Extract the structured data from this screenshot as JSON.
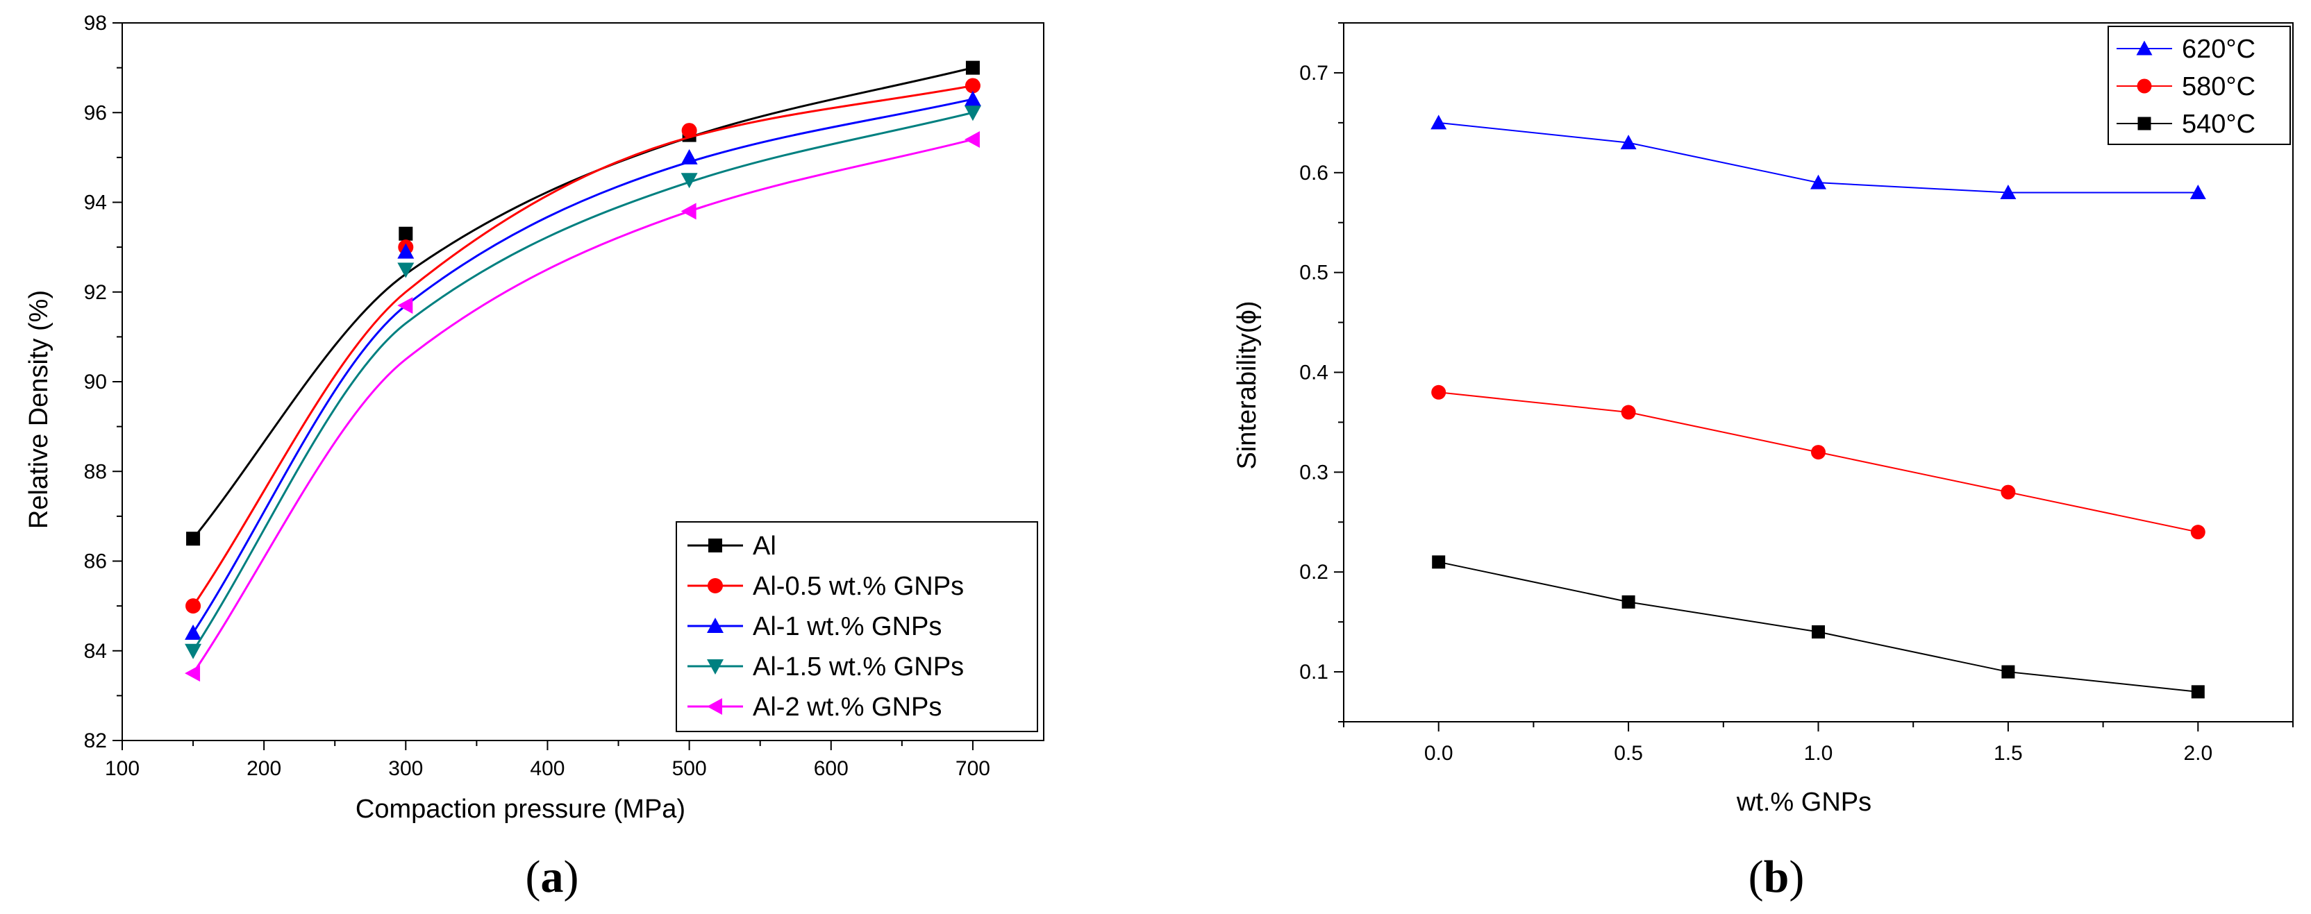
{
  "chart_data": [
    {
      "type": "line",
      "panel": "a",
      "caption_open": "(",
      "caption_letter": "a",
      "caption_close": ")",
      "xlabel": "Compaction pressure (MPa)",
      "ylabel": "Relative Density (%)",
      "xlim": [
        100,
        750
      ],
      "ylim": [
        82,
        98
      ],
      "xticks": [
        100,
        200,
        300,
        400,
        500,
        600,
        700
      ],
      "yticks": [
        82,
        84,
        86,
        88,
        90,
        92,
        94,
        96,
        98
      ],
      "legend_position": "bottom-right",
      "x": [
        150,
        300,
        500,
        700
      ],
      "series": [
        {
          "name": "Al",
          "color": "#000000",
          "marker": "square",
          "values": [
            86.5,
            93.3,
            95.5,
            97.0
          ],
          "fit": [
            86.5,
            92.4,
            95.45,
            97.0
          ]
        },
        {
          "name": "Al-0.5 wt.% GNPs",
          "color": "#ff0000",
          "marker": "circle",
          "values": [
            85.0,
            93.0,
            95.6,
            96.6
          ],
          "fit": [
            85.0,
            92.0,
            95.45,
            96.6
          ]
        },
        {
          "name": "Al-1 wt.% GNPs",
          "color": "#0000ff",
          "marker": "triangle-up",
          "values": [
            84.4,
            92.9,
            95.0,
            96.3
          ],
          "fit": [
            84.4,
            91.7,
            94.9,
            96.3
          ]
        },
        {
          "name": "Al-1.5 wt.% GNPs",
          "color": "#008080",
          "marker": "triangle-down",
          "values": [
            84.0,
            92.5,
            94.5,
            96.0
          ],
          "fit": [
            84.0,
            91.3,
            94.45,
            96.0
          ]
        },
        {
          "name": "Al-2 wt.% GNPs",
          "color": "#ff00ff",
          "marker": "triangle-left",
          "values": [
            83.5,
            91.7,
            93.8,
            95.4
          ],
          "fit": [
            83.5,
            90.5,
            93.8,
            95.4
          ]
        }
      ]
    },
    {
      "type": "line",
      "panel": "b",
      "caption_open": "(",
      "caption_letter": "b",
      "caption_close": ")",
      "xlabel": "wt.% GNPs",
      "ylabel": "Sinterability(ϕ)",
      "xlim": [
        -0.25,
        2.25
      ],
      "ylim": [
        0.05,
        0.75
      ],
      "xticks": [
        "0.0",
        "0.5",
        "1.0",
        "1.5",
        "2.0"
      ],
      "yticks": [
        "0.1",
        "0.2",
        "0.3",
        "0.4",
        "0.5",
        "0.6",
        "0.7"
      ],
      "legend_position": "top-right",
      "x": [
        0.0,
        0.5,
        1.0,
        1.5,
        2.0
      ],
      "series": [
        {
          "name": "620°C",
          "color": "#0000ff",
          "marker": "triangle-up",
          "values": [
            0.65,
            0.63,
            0.59,
            0.58,
            0.58
          ]
        },
        {
          "name": "580°C",
          "color": "#ff0000",
          "marker": "circle",
          "values": [
            0.38,
            0.36,
            0.32,
            0.28,
            0.24
          ]
        },
        {
          "name": "540°C",
          "color": "#000000",
          "marker": "square",
          "values": [
            0.21,
            0.17,
            0.14,
            0.1,
            0.08
          ]
        }
      ]
    }
  ]
}
